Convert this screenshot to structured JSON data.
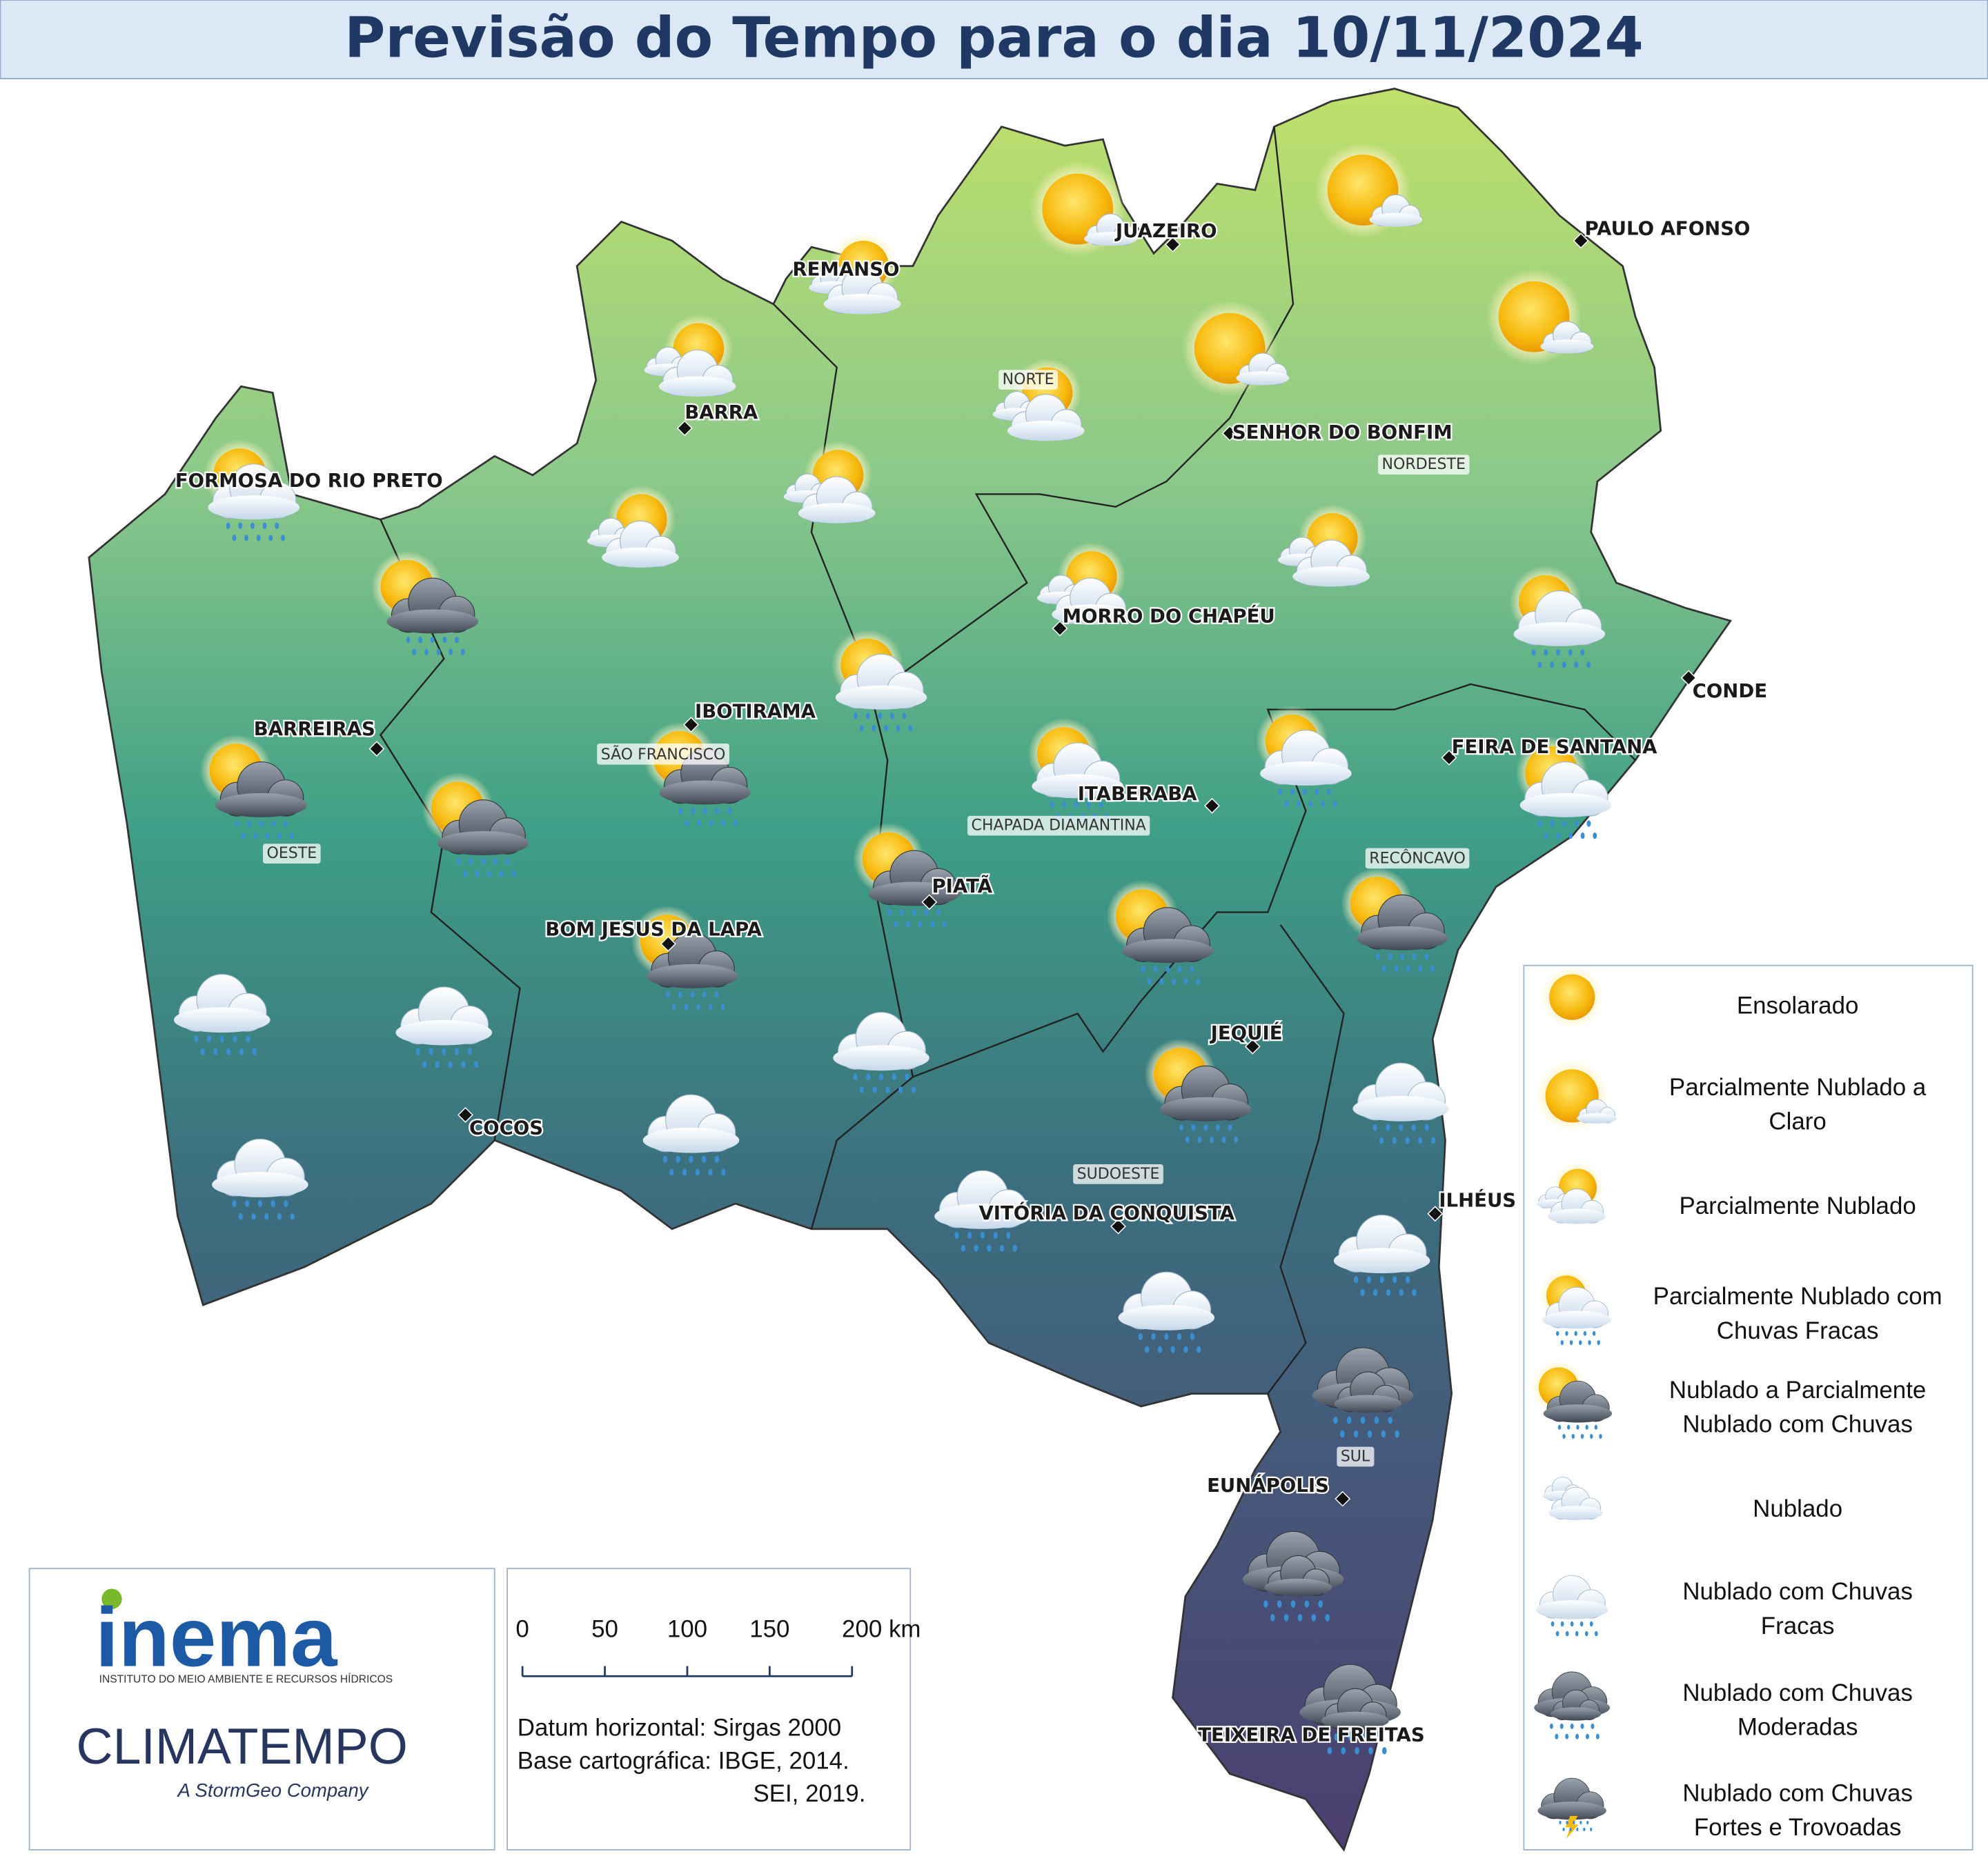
{
  "header": {
    "title": "Previsão do Tempo para o dia 10/11/2024"
  },
  "cities": [
    "JUAZEIRO",
    "PAULO AFONSO",
    "REMANSO",
    "BARRA",
    "FORMOSA DO RIO PRETO",
    "SENHOR DO BONFIM",
    "MORRO DO CHAPÉU",
    "CONDE",
    "IBOTIRAMA",
    "BARREIRAS",
    "FEIRA DE SANTANA",
    "ITABERABA",
    "PIATÃ",
    "BOM JESUS DA LAPA",
    "JEQUIÉ",
    "COCOS",
    "ILHÉUS",
    "VITÓRIA DA CONQUISTA",
    "EUNÁPOLIS",
    "TEIXEIRA DE FREITAS"
  ],
  "regions": [
    "NORTE",
    "NORDESTE",
    "SÃO FRANCISCO",
    "CHAPADA DIAMANTINA",
    "OESTE",
    "RECÔNCAVO",
    "SUDOESTE",
    "SUL"
  ],
  "legend": [
    [
      "Ensolarado"
    ],
    [
      "Parcialmente Nublado a",
      "Claro"
    ],
    [
      "Parcialmente Nublado"
    ],
    [
      "Parcialmente Nublado com",
      "Chuvas Fracas"
    ],
    [
      "Nublado a Parcialmente",
      "Nublado com Chuvas"
    ],
    [
      "Nublado"
    ],
    [
      "Nublado com Chuvas",
      "Fracas"
    ],
    [
      "Nublado com Chuvas",
      "Moderadas"
    ],
    [
      "Nublado com Chuvas",
      "Fortes e Trovoadas"
    ]
  ],
  "scale": [
    "0",
    "50",
    "100",
    "150",
    "200 km"
  ],
  "notes": [
    "Datum horizontal: Sirgas 2000",
    "Base cartográfica: IBGE, 2014.",
    "SEI, 2019."
  ],
  "logos": {
    "inema": "inema",
    "inema_subtitle": "INSTITUTO DO MEIO AMBIENTE E RECURSOS HÍDRICOS",
    "climatempo": "CLIMATEMPO",
    "climatempo_subtitle": "A StormGeo Company"
  }
}
